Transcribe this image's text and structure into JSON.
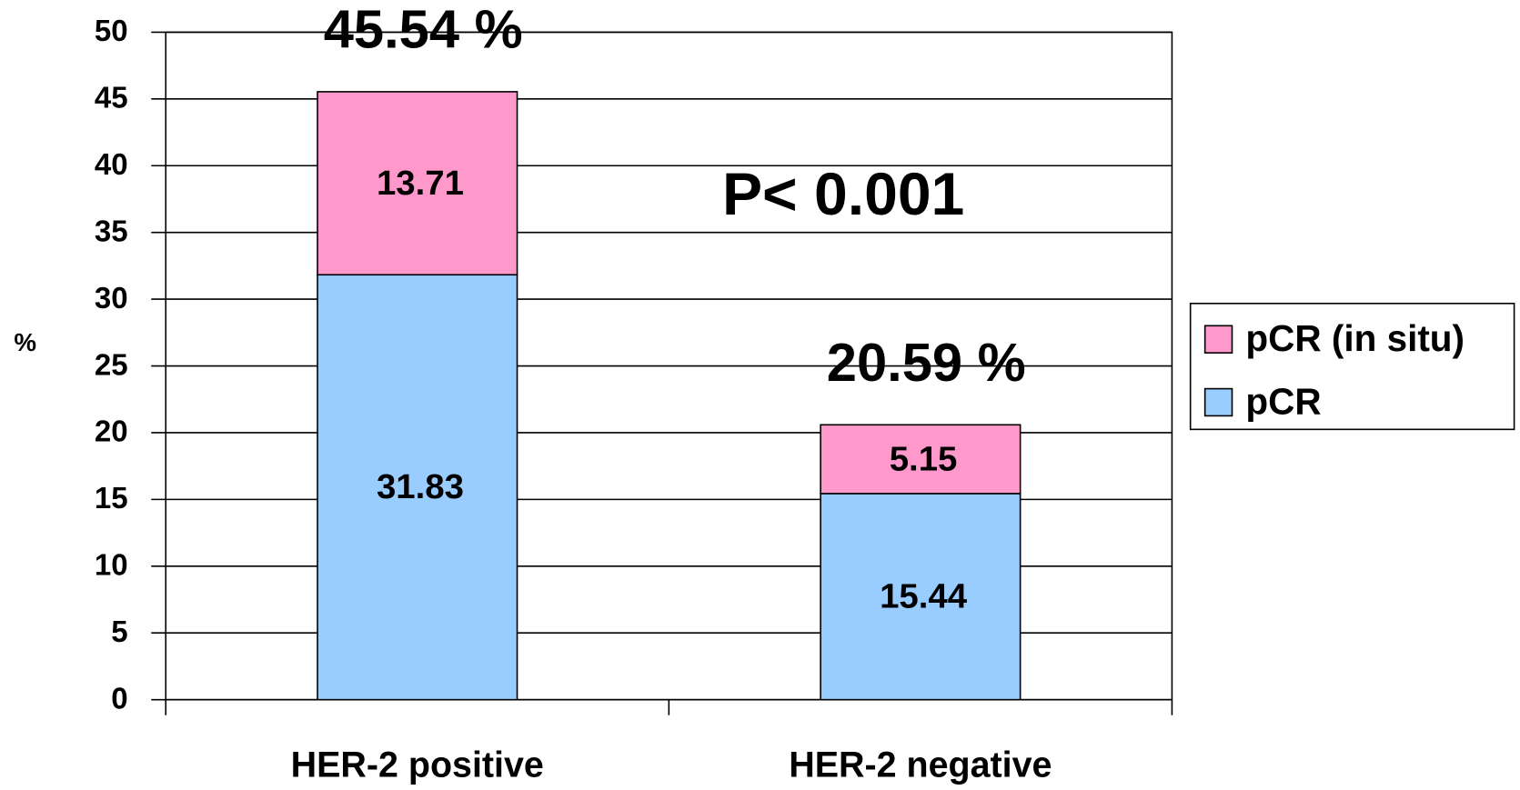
{
  "chart_data": {
    "type": "stacked_bar",
    "y_label": "%",
    "categories": [
      "HER-2 positive",
      "HER-2 negative"
    ],
    "series": [
      {
        "name": "pCR",
        "color": "#99ccff",
        "values": [
          31.83,
          15.44
        ]
      },
      {
        "name": "pCR (in situ)",
        "color": "#ff99cc",
        "values": [
          13.71,
          5.15
        ]
      }
    ],
    "total_labels": [
      "45.54 %",
      "20.59 %"
    ],
    "annotation": "P< 0.001",
    "ylim": [
      0,
      50
    ],
    "yticks": [
      0,
      5,
      10,
      15,
      20,
      25,
      30,
      35,
      40,
      45,
      50
    ],
    "grid": true,
    "legend": "right"
  }
}
